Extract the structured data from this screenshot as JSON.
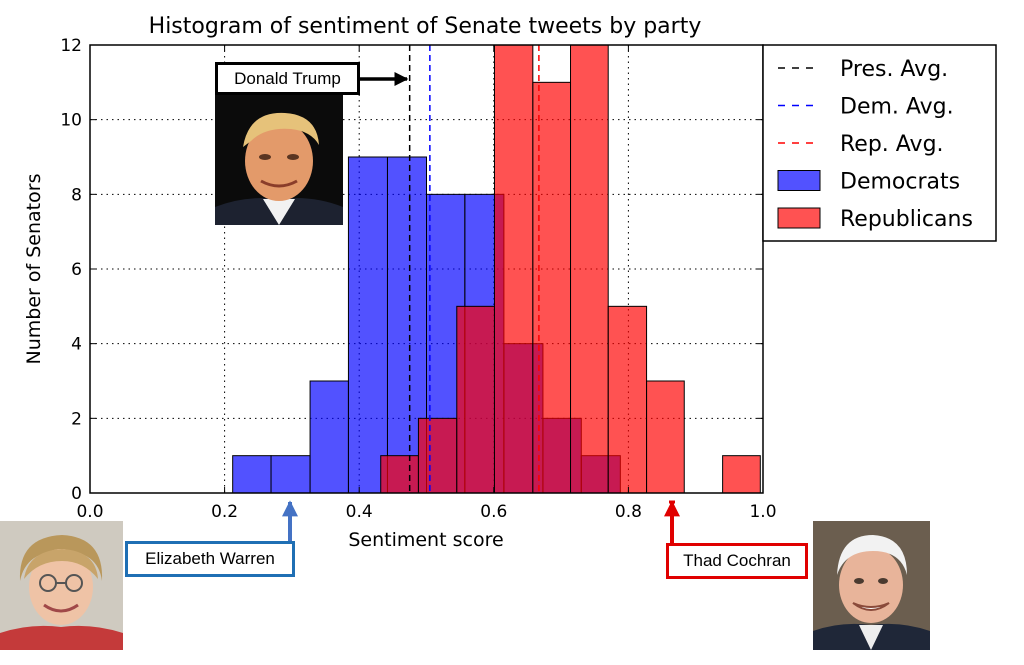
{
  "chart_data": {
    "type": "bar",
    "title": "Histogram of sentiment of Senate tweets by party",
    "xlabel": "Sentiment score",
    "ylabel": "Number of Senators",
    "xlim": [
      0.0,
      1.0
    ],
    "ylim": [
      0,
      12
    ],
    "xticks": [
      "0.0",
      "0.2",
      "0.4",
      "0.6",
      "0.8",
      "1.0"
    ],
    "yticks": [
      "0",
      "2",
      "4",
      "6",
      "8",
      "10",
      "12"
    ],
    "grid": true,
    "legend_position": "top-right",
    "series": [
      {
        "name": "Democrats",
        "color": "#0000ff",
        "bins": [
          {
            "x0": 0.212,
            "x1": 0.269,
            "value": 1
          },
          {
            "x0": 0.269,
            "x1": 0.327,
            "value": 1
          },
          {
            "x0": 0.327,
            "x1": 0.384,
            "value": 3
          },
          {
            "x0": 0.384,
            "x1": 0.442,
            "value": 9
          },
          {
            "x0": 0.442,
            "x1": 0.5,
            "value": 9
          },
          {
            "x0": 0.5,
            "x1": 0.557,
            "value": 8
          },
          {
            "x0": 0.557,
            "x1": 0.615,
            "value": 8
          },
          {
            "x0": 0.615,
            "x1": 0.673,
            "value": 4
          },
          {
            "x0": 0.673,
            "x1": 0.73,
            "value": 2
          },
          {
            "x0": 0.73,
            "x1": 0.788,
            "value": 1
          }
        ]
      },
      {
        "name": "Republicans",
        "color": "#ff0000",
        "bins": [
          {
            "x0": 0.432,
            "x1": 0.488,
            "value": 1
          },
          {
            "x0": 0.488,
            "x1": 0.545,
            "value": 2
          },
          {
            "x0": 0.545,
            "x1": 0.601,
            "value": 5
          },
          {
            "x0": 0.601,
            "x1": 0.658,
            "value": 12
          },
          {
            "x0": 0.658,
            "x1": 0.714,
            "value": 11
          },
          {
            "x0": 0.714,
            "x1": 0.77,
            "value": 12
          },
          {
            "x0": 0.77,
            "x1": 0.827,
            "value": 5
          },
          {
            "x0": 0.827,
            "x1": 0.883,
            "value": 3
          },
          {
            "x0": 0.883,
            "x1": 0.94,
            "value": 0
          },
          {
            "x0": 0.94,
            "x1": 0.996,
            "value": 1
          }
        ]
      }
    ],
    "averages": [
      {
        "name": "Pres. Avg.",
        "value": 0.475,
        "color": "#000000"
      },
      {
        "name": "Dem. Avg.",
        "value": 0.505,
        "color": "#0000ff"
      },
      {
        "name": "Rep. Avg.",
        "value": 0.667,
        "color": "#ff0000"
      }
    ]
  },
  "annotations": [
    {
      "label": "Donald Trump",
      "x": 0.475,
      "color": "#000000",
      "photo": "donald-trump-photo"
    },
    {
      "label": "Elizabeth Warren",
      "x": 0.3,
      "color": "#1f6fb4",
      "photo": "elizabeth-warren-photo"
    },
    {
      "label": "Thad Cochran",
      "x": 0.862,
      "color": "#e00000",
      "photo": "thad-cochran-photo"
    }
  ]
}
